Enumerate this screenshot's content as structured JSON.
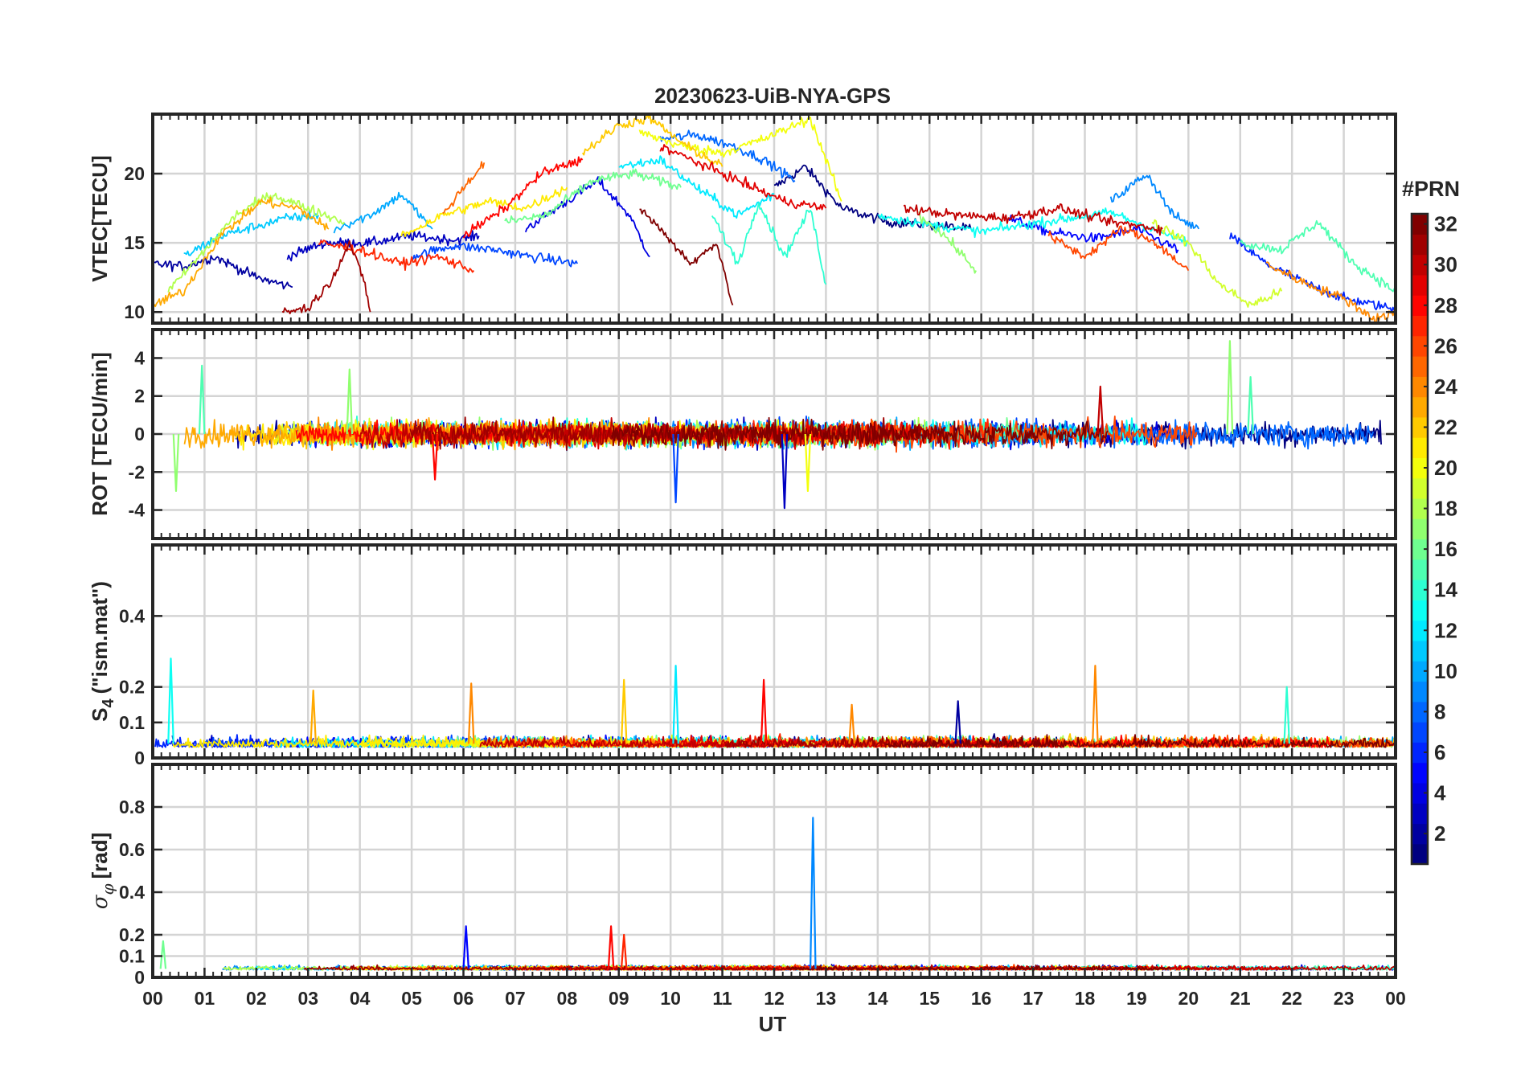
{
  "figure": {
    "title": "20230623-UiB-NYA-GPS",
    "xlabel": "UT",
    "x_tick_labels": [
      "00",
      "01",
      "02",
      "03",
      "04",
      "05",
      "06",
      "07",
      "08",
      "09",
      "10",
      "11",
      "12",
      "13",
      "14",
      "15",
      "16",
      "17",
      "18",
      "19",
      "20",
      "21",
      "22",
      "23",
      "00"
    ]
  },
  "colorbar": {
    "title": "#PRN",
    "range": [
      1,
      32
    ],
    "colormap": "jet",
    "ticks": [
      2,
      4,
      6,
      8,
      10,
      12,
      14,
      16,
      18,
      20,
      22,
      24,
      26,
      28,
      30,
      32
    ],
    "tick_labels": [
      "2",
      "4",
      "6",
      "8",
      "10",
      "12",
      "14",
      "16",
      "18",
      "20",
      "22",
      "24",
      "26",
      "28",
      "30",
      "32"
    ]
  },
  "chart_data": [
    {
      "type": "line",
      "id": "vtec",
      "ylabel": "VTEC[TECU]",
      "xlim": [
        0,
        24
      ],
      "ylim": [
        9.2,
        24.3
      ],
      "y_ticks": [
        10,
        15,
        20
      ],
      "y_tick_labels": [
        "10",
        "15",
        "20"
      ],
      "grid": true,
      "series_color_by": "PRN",
      "series": [
        {
          "prn": 1,
          "x": [
            12.0,
            12.6,
            13.3,
            14.2,
            15.0,
            15.8
          ],
          "y": [
            19.0,
            20.5,
            17.5,
            16.5,
            16.3,
            16.0
          ]
        },
        {
          "prn": 2,
          "x": [
            0.0,
            0.6,
            1.2,
            2.0,
            2.7
          ],
          "y": [
            13.5,
            13.3,
            14.0,
            12.5,
            11.8
          ]
        },
        {
          "prn": 3,
          "x": [
            2.6,
            3.3,
            4.2,
            5.0,
            5.8,
            6.3
          ],
          "y": [
            14.0,
            15.0,
            15.0,
            15.5,
            15.2,
            15.5
          ]
        },
        {
          "prn": 4,
          "x": [
            7.2,
            8.0,
            8.6,
            9.2,
            9.6
          ],
          "y": [
            16.0,
            18.0,
            19.5,
            17.0,
            14.0
          ]
        },
        {
          "prn": 5,
          "x": [
            16.5,
            17.3,
            18.2,
            19.0,
            19.8
          ],
          "y": [
            16.8,
            15.8,
            15.3,
            16.0,
            14.5
          ]
        },
        {
          "prn": 6,
          "x": [
            20.8,
            21.5,
            22.3,
            23.0,
            24.0
          ],
          "y": [
            15.5,
            13.5,
            12.0,
            11.0,
            10.2
          ]
        },
        {
          "prn": 7,
          "x": [
            5.0,
            5.8,
            6.6,
            7.3,
            8.2
          ],
          "y": [
            14.0,
            14.8,
            14.5,
            14.0,
            13.5
          ]
        },
        {
          "prn": 8,
          "x": [
            9.8,
            10.5,
            11.2,
            11.8,
            12.4
          ],
          "y": [
            22.5,
            22.8,
            22.0,
            21.0,
            19.5
          ]
        },
        {
          "prn": 9,
          "x": [
            18.5,
            19.2,
            19.7,
            20.2
          ],
          "y": [
            18.0,
            20.0,
            17.0,
            16.0
          ]
        },
        {
          "prn": 10,
          "x": [
            3.5,
            4.2,
            4.8,
            5.4
          ],
          "y": [
            16.0,
            17.0,
            18.5,
            16.0
          ]
        },
        {
          "prn": 11,
          "x": [
            0.6,
            1.3,
            2.0,
            2.6,
            3.2
          ],
          "y": [
            14.0,
            15.5,
            16.2,
            16.8,
            17.0
          ]
        },
        {
          "prn": 12,
          "x": [
            9.0,
            9.8,
            10.5,
            11.3,
            12.0
          ],
          "y": [
            20.5,
            21.0,
            19.0,
            17.0,
            18.5
          ]
        },
        {
          "prn": 13,
          "x": [
            14.0,
            15.0,
            16.0,
            17.2,
            18.5,
            20.0
          ],
          "y": [
            17.0,
            16.3,
            15.8,
            16.5,
            17.2,
            15.0
          ]
        },
        {
          "prn": 14,
          "x": [
            10.8,
            11.3,
            11.7,
            12.2,
            12.7,
            13.0
          ],
          "y": [
            17.0,
            13.5,
            18.0,
            14.0,
            17.5,
            12.0
          ]
        },
        {
          "prn": 15,
          "x": [
            21.0,
            21.8,
            22.5,
            23.2,
            24.0
          ],
          "y": [
            15.0,
            14.5,
            16.5,
            13.5,
            11.5
          ]
        },
        {
          "prn": 16,
          "x": [
            6.8,
            7.6,
            8.5,
            9.3,
            10.2
          ],
          "y": [
            16.5,
            17.0,
            19.5,
            20.0,
            19.0
          ]
        },
        {
          "prn": 17,
          "x": [
            14.8,
            15.3,
            15.9
          ],
          "y": [
            17.0,
            15.5,
            13.0
          ]
        },
        {
          "prn": 18,
          "x": [
            0.3,
            0.9,
            1.6,
            2.3,
            3.0,
            3.7
          ],
          "y": [
            11.5,
            14.0,
            17.0,
            18.5,
            17.5,
            16.5
          ]
        },
        {
          "prn": 19,
          "x": [
            19.3,
            20.0,
            20.6,
            21.2,
            21.8
          ],
          "y": [
            16.5,
            15.0,
            12.0,
            10.5,
            11.5
          ]
        },
        {
          "prn": 20,
          "x": [
            9.4,
            10.2,
            11.0,
            11.8,
            12.7,
            13.3
          ],
          "y": [
            23.0,
            22.0,
            21.5,
            22.5,
            24.0,
            18.0
          ]
        },
        {
          "prn": 21,
          "x": [
            4.8,
            5.6,
            6.5,
            7.2,
            8.0
          ],
          "y": [
            15.5,
            17.0,
            18.0,
            17.5,
            19.0
          ]
        },
        {
          "prn": 22,
          "x": [
            8.3,
            9.0,
            9.6,
            10.3,
            11.0
          ],
          "y": [
            21.5,
            23.5,
            24.0,
            22.0,
            20.5
          ]
        },
        {
          "prn": 23,
          "x": [
            0.0,
            0.6,
            1.3,
            2.1,
            2.8,
            3.4
          ],
          "y": [
            10.5,
            11.5,
            15.5,
            18.0,
            17.5,
            16.0
          ]
        },
        {
          "prn": 24,
          "x": [
            21.5,
            22.3,
            23.0,
            23.6,
            24.0
          ],
          "y": [
            13.5,
            12.0,
            11.0,
            9.5,
            10.0
          ]
        },
        {
          "prn": 25,
          "x": [
            5.6,
            6.0,
            6.4
          ],
          "y": [
            17.0,
            19.0,
            20.8
          ]
        },
        {
          "prn": 26,
          "x": [
            17.3,
            18.0,
            18.7,
            19.3,
            20.0
          ],
          "y": [
            15.5,
            14.0,
            16.0,
            15.2,
            13.0
          ]
        },
        {
          "prn": 27,
          "x": [
            3.2,
            4.0,
            4.8,
            5.5,
            6.2
          ],
          "y": [
            15.0,
            14.5,
            13.5,
            14.0,
            13.0
          ]
        },
        {
          "prn": 28,
          "x": [
            6.0,
            6.8,
            7.5,
            8.3
          ],
          "y": [
            15.5,
            17.5,
            20.0,
            21.0
          ]
        },
        {
          "prn": 29,
          "x": [
            9.8,
            10.4,
            11.0,
            11.6,
            12.2,
            13.0
          ],
          "y": [
            22.0,
            21.0,
            20.0,
            19.0,
            18.0,
            17.5
          ]
        },
        {
          "prn": 30,
          "x": [
            14.5,
            15.5,
            16.5,
            17.5,
            18.5,
            19.5
          ],
          "y": [
            17.5,
            17.0,
            16.8,
            17.5,
            16.5,
            16.0
          ]
        },
        {
          "prn": 31,
          "x": [
            2.5,
            3.0,
            3.4,
            3.8,
            4.1,
            4.2
          ],
          "y": [
            10.0,
            10.3,
            12.0,
            15.0,
            12.0,
            10.0
          ]
        },
        {
          "prn": 32,
          "x": [
            9.4,
            9.8,
            10.4,
            10.9,
            11.2
          ],
          "y": [
            17.5,
            16.0,
            13.5,
            15.0,
            10.5
          ]
        }
      ]
    },
    {
      "type": "line",
      "id": "rot",
      "ylabel": "ROT [TECU/min]",
      "xlim": [
        0,
        24
      ],
      "ylim": [
        -5.5,
        5.5
      ],
      "y_ticks": [
        -4,
        -2,
        0,
        2,
        4
      ],
      "y_tick_labels": [
        "-4",
        "-2",
        "0",
        "2",
        "4"
      ],
      "grid": true,
      "series_color_by": "PRN",
      "description_level": "noise around 0, typical amplitude +/-1 TECU/min",
      "peaks": [
        {
          "x": 0.95,
          "y": 3.6,
          "prn": 15
        },
        {
          "x": 0.45,
          "y": -3.0,
          "prn": 17
        },
        {
          "x": 3.8,
          "y": 3.4,
          "prn": 17
        },
        {
          "x": 5.45,
          "y": -2.4,
          "prn": 28
        },
        {
          "x": 10.1,
          "y": -3.6,
          "prn": 7
        },
        {
          "x": 12.2,
          "y": -3.9,
          "prn": 3
        },
        {
          "x": 12.65,
          "y": -3.0,
          "prn": 20
        },
        {
          "x": 18.3,
          "y": 2.5,
          "prn": 30
        },
        {
          "x": 20.8,
          "y": 4.9,
          "prn": 17
        },
        {
          "x": 21.2,
          "y": 3.0,
          "prn": 15
        }
      ]
    },
    {
      "type": "line",
      "id": "s4",
      "ylabel": "S4 (\"ism.mat\")",
      "ylabel_base": "S",
      "ylabel_sub": "4",
      "ylabel_rest": "(\"ism.mat\")",
      "xlim": [
        0,
        24
      ],
      "ylim": [
        0,
        0.6
      ],
      "y_ticks": [
        0,
        0.1,
        0.2,
        0.4
      ],
      "y_tick_labels": [
        "0",
        "0.1",
        "0.2",
        "0.4"
      ],
      "grid": true,
      "series_color_by": "PRN",
      "description_level": "baseline around 0.02-0.06",
      "peaks": [
        {
          "x": 0.35,
          "y": 0.28,
          "prn": 13
        },
        {
          "x": 3.1,
          "y": 0.19,
          "prn": 23
        },
        {
          "x": 6.15,
          "y": 0.21,
          "prn": 24
        },
        {
          "x": 9.1,
          "y": 0.22,
          "prn": 22
        },
        {
          "x": 10.1,
          "y": 0.26,
          "prn": 12
        },
        {
          "x": 11.8,
          "y": 0.22,
          "prn": 28
        },
        {
          "x": 13.5,
          "y": 0.15,
          "prn": 24
        },
        {
          "x": 15.55,
          "y": 0.16,
          "prn": 2
        },
        {
          "x": 18.2,
          "y": 0.26,
          "prn": 24
        },
        {
          "x": 21.9,
          "y": 0.2,
          "prn": 14
        }
      ]
    },
    {
      "type": "line",
      "id": "sigma-phi",
      "ylabel": "σφ[rad]",
      "ylabel_base": "σ",
      "ylabel_sub": "φ",
      "ylabel_rest": "[rad]",
      "xlim": [
        0,
        24
      ],
      "ylim": [
        0,
        1.0
      ],
      "y_ticks": [
        0,
        0.1,
        0.2,
        0.4,
        0.6,
        0.8
      ],
      "y_tick_labels": [
        "0",
        "0.1",
        "0.2",
        "0.4",
        "0.6",
        "0.8"
      ],
      "grid": true,
      "series_color_by": "PRN",
      "description_level": "baseline around 0.03-0.06",
      "peaks": [
        {
          "x": 0.2,
          "y": 0.17,
          "prn": 16
        },
        {
          "x": 6.05,
          "y": 0.24,
          "prn": 5
        },
        {
          "x": 8.85,
          "y": 0.24,
          "prn": 28
        },
        {
          "x": 9.1,
          "y": 0.2,
          "prn": 27
        },
        {
          "x": 12.75,
          "y": 0.75,
          "prn": 9
        }
      ]
    }
  ]
}
